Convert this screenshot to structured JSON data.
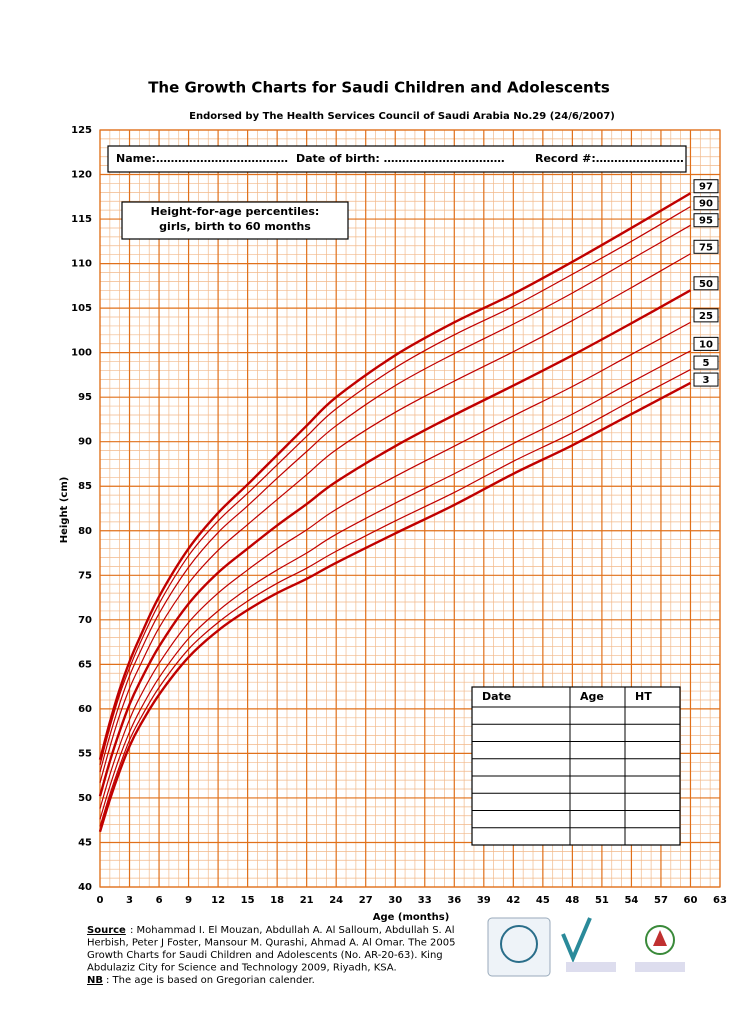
{
  "chart_data": {
    "type": "line",
    "title": "The Growth Charts for Saudi Children and Adolescents",
    "subtitle": "Endorsed by The Health Services Council of Saudi Arabia No.29 (24/6/2007)",
    "form_fields": [
      "Name:………………………………",
      "Date of birth:  ……………………………",
      "Record #:……………………"
    ],
    "legend_text": [
      "Height-for-age percentiles:",
      "girls, birth to 60 months"
    ],
    "xlabel": "Age (months)",
    "ylabel": "Height (cm)",
    "xlim": [
      0,
      63
    ],
    "ylim": [
      40,
      125
    ],
    "xticks": [
      0,
      3,
      6,
      9,
      12,
      15,
      18,
      21,
      24,
      27,
      30,
      33,
      36,
      39,
      42,
      45,
      48,
      51,
      54,
      57,
      60,
      63
    ],
    "yticks": [
      40,
      45,
      50,
      55,
      60,
      65,
      70,
      75,
      80,
      85,
      90,
      95,
      100,
      105,
      110,
      115,
      120,
      125
    ],
    "grid": true,
    "minor_grid": true,
    "x": [
      0,
      1,
      2,
      3,
      4,
      6,
      9,
      12,
      15,
      18,
      21,
      24,
      30,
      36,
      42,
      48,
      54,
      60
    ],
    "series": [
      {
        "name": "97",
        "color": "#c00000",
        "line_width": 2.4,
        "values": [
          54.3,
          58.5,
          62.2,
          65.3,
          67.9,
          72.6,
          78.0,
          82.0,
          85.2,
          88.5,
          91.8,
          95.0,
          99.7,
          103.4,
          106.6,
          110.2,
          114.0,
          117.9
        ]
      },
      {
        "name": "90",
        "color": "#c00000",
        "line_width": 1.2,
        "values": [
          53.7,
          57.9,
          61.6,
          64.6,
          67.2,
          71.8,
          77.2,
          81.1,
          84.2,
          87.4,
          90.6,
          93.7,
          98.3,
          102.0,
          105.2,
          108.8,
          112.5,
          116.4
        ]
      },
      {
        "name": "95",
        "color": "#c00000",
        "line_width": 1.2,
        "values": [
          52.9,
          57.0,
          60.6,
          63.7,
          66.2,
          70.7,
          75.9,
          79.8,
          82.8,
          85.9,
          88.9,
          91.8,
          96.3,
          99.9,
          103.2,
          106.7,
          110.5,
          114.3
        ]
      },
      {
        "name": "75",
        "color": "#c00000",
        "line_width": 1.2,
        "values": [
          51.7,
          55.7,
          59.3,
          62.3,
          64.7,
          69.1,
          74.1,
          77.8,
          80.7,
          83.5,
          86.3,
          89.1,
          93.3,
          96.8,
          100.1,
          103.6,
          107.3,
          111.1
        ]
      },
      {
        "name": "50",
        "color": "#c00000",
        "line_width": 2.4,
        "values": [
          50.2,
          54.1,
          57.5,
          60.5,
          62.9,
          67.0,
          71.8,
          75.3,
          78.0,
          80.6,
          83.0,
          85.5,
          89.5,
          93.0,
          96.3,
          99.7,
          103.3,
          107.0
        ]
      },
      {
        "name": "25",
        "color": "#c00000",
        "line_width": 1.2,
        "values": [
          48.8,
          52.6,
          55.9,
          58.8,
          61.2,
          65.1,
          69.7,
          73.0,
          75.6,
          78.0,
          80.1,
          82.4,
          86.1,
          89.5,
          92.9,
          96.2,
          99.8,
          103.4
        ]
      },
      {
        "name": "10",
        "color": "#c00000",
        "line_width": 1.2,
        "values": [
          47.6,
          51.3,
          54.6,
          57.4,
          59.7,
          63.5,
          67.9,
          71.0,
          73.5,
          75.6,
          77.5,
          79.6,
          83.1,
          86.4,
          89.8,
          93.1,
          96.7,
          100.2
        ]
      },
      {
        "name": "5",
        "color": "#c00000",
        "line_width": 1.2,
        "values": [
          46.8,
          50.4,
          53.6,
          56.5,
          58.7,
          62.4,
          66.7,
          69.7,
          72.1,
          74.1,
          75.8,
          77.7,
          81.1,
          84.3,
          87.8,
          91.0,
          94.6,
          98.1
        ]
      },
      {
        "name": "3",
        "color": "#c00000",
        "line_width": 2.4,
        "values": [
          46.2,
          49.8,
          53.0,
          55.8,
          58.0,
          61.6,
          65.8,
          68.8,
          71.1,
          73.0,
          74.6,
          76.4,
          79.7,
          82.9,
          86.4,
          89.6,
          93.1,
          96.6
        ]
      }
    ],
    "table_columns": [
      "Date",
      "Age",
      "HT"
    ],
    "source": {
      "label": "Source",
      "lines": [
        ": Mohammad I. El Mouzan, Abdullah A. Al Salloum, Abdullah S. Al",
        "Herbish, Peter J Foster, Mansour M. Qurashi, Ahmad A. Al Omar. The 2005",
        "Growth Charts for Saudi Children and Adolescents (No. AR-20-63). King",
        "Abdulaziz City for Science and Technology 2009, Riyadh, KSA."
      ]
    },
    "note": {
      "label": "NB",
      "text": ": The age is based on Gregorian calender."
    }
  }
}
